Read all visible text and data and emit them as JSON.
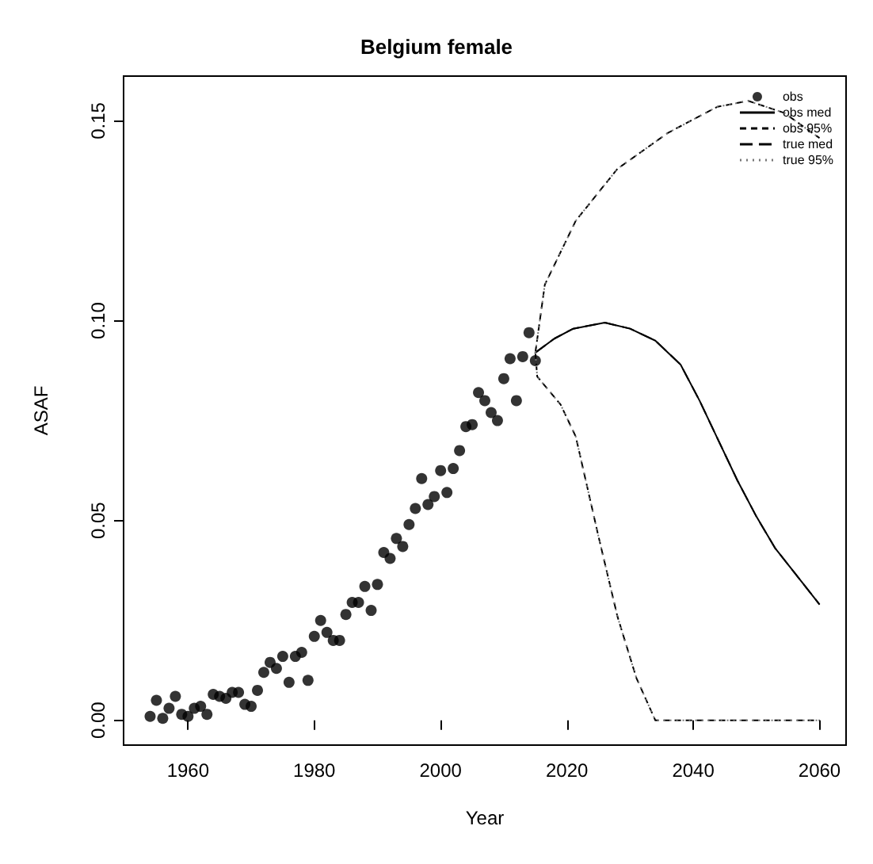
{
  "chart_data": {
    "type": "scatter",
    "title": "Belgium female",
    "xlabel": "Year",
    "ylabel": "ASAF",
    "xlim": [
      1949.8,
      2064.2
    ],
    "ylim": [
      -0.0062,
      0.1612
    ],
    "xticks": [
      1960,
      1980,
      2000,
      2020,
      2040,
      2060
    ],
    "yticks": [
      {
        "value": 0,
        "label": "0.00"
      },
      {
        "value": 0.05,
        "label": "0.05"
      },
      {
        "value": 0.1,
        "label": "0.10"
      },
      {
        "value": 0.15,
        "label": "0.15"
      }
    ],
    "grid": false,
    "legend": "top right",
    "series": [
      {
        "name": "obs",
        "type": "scatter",
        "marker": "circle",
        "color": "#000000",
        "x": [
          1954,
          1955,
          1956,
          1957,
          1958,
          1959,
          1960,
          1961,
          1962,
          1963,
          1964,
          1965,
          1966,
          1967,
          1968,
          1969,
          1970,
          1971,
          1972,
          1973,
          1974,
          1975,
          1976,
          1977,
          1978,
          1979,
          1980,
          1981,
          1982,
          1983,
          1984,
          1985,
          1986,
          1987,
          1988,
          1989,
          1990,
          1991,
          1992,
          1993,
          1994,
          1995,
          1996,
          1997,
          1998,
          1999,
          2000,
          2001,
          2002,
          2003,
          2004,
          2005,
          2006,
          2007,
          2008,
          2009,
          2010,
          2011,
          2012,
          2013,
          2014,
          2015
        ],
        "values": [
          0.001,
          0.005,
          0.0005,
          0.003,
          0.006,
          0.0015,
          0.001,
          0.003,
          0.0035,
          0.0015,
          0.0065,
          0.006,
          0.0055,
          0.007,
          0.007,
          0.004,
          0.0035,
          0.0075,
          0.012,
          0.0145,
          0.013,
          0.016,
          0.0095,
          0.016,
          0.017,
          0.01,
          0.021,
          0.025,
          0.022,
          0.02,
          0.02,
          0.0265,
          0.0295,
          0.0295,
          0.0335,
          0.0275,
          0.034,
          0.042,
          0.0405,
          0.0455,
          0.0435,
          0.049,
          0.053,
          0.0605,
          0.054,
          0.056,
          0.0625,
          0.057,
          0.063,
          0.0675,
          0.0735,
          0.074,
          0.082,
          0.08,
          0.077,
          0.075,
          0.0855,
          0.0905,
          0.08,
          0.091,
          0.097,
          0.09
        ]
      },
      {
        "name": "obs med",
        "type": "line",
        "marker": "none",
        "line_style": "solid",
        "color": "#000000",
        "x": [
          2015,
          2018,
          2021,
          2026,
          2030,
          2034,
          2038,
          2041,
          2044,
          2047,
          2050,
          2053,
          2056,
          2060
        ],
        "values": [
          0.092,
          0.0955,
          0.098,
          0.0995,
          0.098,
          0.095,
          0.089,
          0.08,
          0.07,
          0.06,
          0.051,
          0.043,
          0.037,
          0.029
        ]
      },
      {
        "name": "obs 95%",
        "type": "line",
        "marker": "none",
        "line_style": "dashed",
        "color": "#000000",
        "x": [
          2015,
          2016.5,
          2021.4,
          2028,
          2036,
          2043.8,
          2048.7,
          2054.4,
          2060,
          null,
          2015,
          2015.3,
          2019,
          2021.4,
          2025,
          2028,
          2031,
          2034,
          2040,
          2050,
          2060
        ],
        "values": [
          0.092,
          0.109,
          0.125,
          0.138,
          0.147,
          0.1535,
          0.155,
          0.152,
          0.1457,
          null,
          0.092,
          0.086,
          0.079,
          0.071,
          0.046,
          0.026,
          0.0106,
          0,
          0,
          0,
          0
        ]
      },
      {
        "name": "true med",
        "type": "line",
        "marker": "none",
        "line_style": "longdash",
        "color": "#000000",
        "x": [
          2015,
          2018,
          2021,
          2026,
          2030,
          2034,
          2038,
          2041,
          2044,
          2047,
          2050,
          2053,
          2056,
          2060
        ],
        "values": [
          0.092,
          0.0955,
          0.098,
          0.0995,
          0.098,
          0.095,
          0.089,
          0.08,
          0.07,
          0.06,
          0.051,
          0.043,
          0.037,
          0.029
        ]
      },
      {
        "name": "true 95%",
        "type": "line",
        "marker": "none",
        "line_style": "dotted",
        "color": "#777777",
        "x": [
          2015,
          2016.5,
          2021.4,
          2028,
          2036,
          2043.8,
          2048.7,
          2054.4,
          2060,
          null,
          2015,
          2015.3,
          2019,
          2021.4,
          2025,
          2028,
          2031,
          2034,
          2040,
          2050,
          2060
        ],
        "values": [
          0.092,
          0.109,
          0.125,
          0.138,
          0.147,
          0.1535,
          0.155,
          0.152,
          0.1457,
          null,
          0.092,
          0.086,
          0.079,
          0.071,
          0.046,
          0.026,
          0.0106,
          0,
          0,
          0,
          0
        ]
      }
    ]
  }
}
